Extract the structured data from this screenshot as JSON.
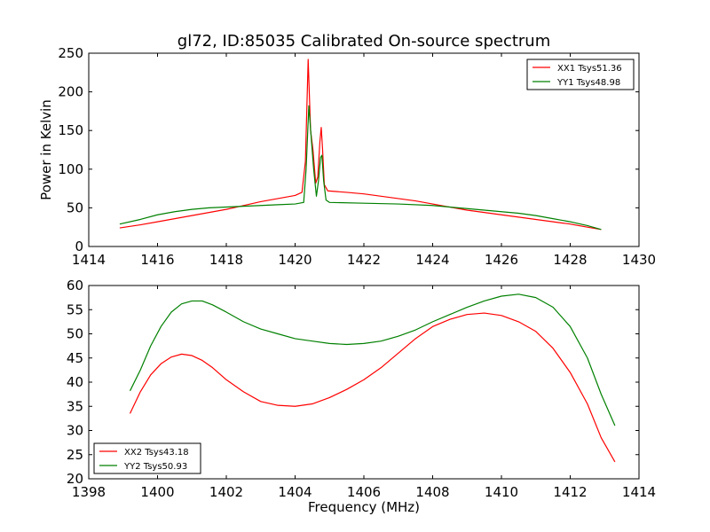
{
  "chart_data": [
    {
      "type": "line",
      "title": "gl72, ID:85035 Calibrated On-source spectrum",
      "xlabel": "",
      "ylabel": "Power in Kelvin",
      "xlim": [
        1414,
        1430
      ],
      "ylim": [
        0,
        250
      ],
      "xticks": [
        1414,
        1416,
        1418,
        1420,
        1422,
        1424,
        1426,
        1428,
        1430
      ],
      "yticks": [
        0,
        50,
        100,
        150,
        200,
        250
      ],
      "legend_position": "top-right",
      "series": [
        {
          "name": "XX1 Tsys51.36",
          "color": "#ff0000",
          "points": [
            [
              1414.9,
              24
            ],
            [
              1415.5,
              28
            ],
            [
              1416,
              32
            ],
            [
              1416.5,
              36
            ],
            [
              1417,
              40
            ],
            [
              1417.5,
              44
            ],
            [
              1418,
              48
            ],
            [
              1418.5,
              53
            ],
            [
              1419,
              58
            ],
            [
              1419.5,
              62
            ],
            [
              1420,
              66
            ],
            [
              1420.2,
              70
            ],
            [
              1420.3,
              110
            ],
            [
              1420.38,
              242
            ],
            [
              1420.45,
              150
            ],
            [
              1420.52,
              125
            ],
            [
              1420.6,
              82
            ],
            [
              1420.66,
              90
            ],
            [
              1420.72,
              135
            ],
            [
              1420.76,
              154
            ],
            [
              1420.8,
              125
            ],
            [
              1420.85,
              80
            ],
            [
              1420.95,
              72
            ],
            [
              1421.5,
              70
            ],
            [
              1422,
              68
            ],
            [
              1422.5,
              65
            ],
            [
              1423,
              62
            ],
            [
              1423.5,
              59
            ],
            [
              1424,
              55
            ],
            [
              1424.5,
              51
            ],
            [
              1425,
              47
            ],
            [
              1425.5,
              44
            ],
            [
              1426,
              41
            ],
            [
              1426.5,
              38
            ],
            [
              1427,
              35
            ],
            [
              1427.5,
              32
            ],
            [
              1428,
              29
            ],
            [
              1428.5,
              25
            ],
            [
              1428.9,
              22
            ]
          ]
        },
        {
          "name": "YY1 Tsys48.98",
          "color": "#008000",
          "points": [
            [
              1414.9,
              29
            ],
            [
              1415.5,
              35
            ],
            [
              1416,
              41
            ],
            [
              1416.5,
              45
            ],
            [
              1417,
              48
            ],
            [
              1417.5,
              50
            ],
            [
              1418,
              51
            ],
            [
              1418.5,
              52
            ],
            [
              1419,
              53
            ],
            [
              1419.5,
              54
            ],
            [
              1420,
              55
            ],
            [
              1420.25,
              57
            ],
            [
              1420.32,
              100
            ],
            [
              1420.4,
              182
            ],
            [
              1420.47,
              140
            ],
            [
              1420.54,
              100
            ],
            [
              1420.62,
              65
            ],
            [
              1420.68,
              85
            ],
            [
              1420.74,
              115
            ],
            [
              1420.78,
              118
            ],
            [
              1420.83,
              85
            ],
            [
              1420.9,
              60
            ],
            [
              1421,
              57
            ],
            [
              1422,
              56
            ],
            [
              1423,
              55
            ],
            [
              1424,
              53
            ],
            [
              1424.5,
              51
            ],
            [
              1425,
              49
            ],
            [
              1425.5,
              47
            ],
            [
              1426,
              45
            ],
            [
              1426.5,
              43
            ],
            [
              1427,
              40
            ],
            [
              1427.5,
              36
            ],
            [
              1428,
              32
            ],
            [
              1428.5,
              27
            ],
            [
              1428.9,
              22
            ]
          ]
        }
      ]
    },
    {
      "type": "line",
      "title": "",
      "xlabel": "Frequency (MHz)",
      "ylabel": "",
      "xlim": [
        1398,
        1414
      ],
      "ylim": [
        20,
        60
      ],
      "xticks": [
        1398,
        1400,
        1402,
        1404,
        1406,
        1408,
        1410,
        1412,
        1414
      ],
      "yticks": [
        20,
        25,
        30,
        35,
        40,
        45,
        50,
        55,
        60
      ],
      "legend_position": "bottom-left",
      "series": [
        {
          "name": "XX2 Tsys43.18",
          "color": "#ff0000",
          "points": [
            [
              1399.2,
              33.5
            ],
            [
              1399.5,
              38
            ],
            [
              1399.8,
              41.5
            ],
            [
              1400.1,
              43.8
            ],
            [
              1400.4,
              45.2
            ],
            [
              1400.7,
              45.8
            ],
            [
              1401,
              45.5
            ],
            [
              1401.3,
              44.5
            ],
            [
              1401.6,
              43
            ],
            [
              1402,
              40.5
            ],
            [
              1402.5,
              38
            ],
            [
              1403,
              36
            ],
            [
              1403.5,
              35.2
            ],
            [
              1404,
              35
            ],
            [
              1404.5,
              35.5
            ],
            [
              1405,
              36.8
            ],
            [
              1405.5,
              38.5
            ],
            [
              1406,
              40.5
            ],
            [
              1406.5,
              43
            ],
            [
              1407,
              46
            ],
            [
              1407.5,
              49
            ],
            [
              1408,
              51.5
            ],
            [
              1408.5,
              53
            ],
            [
              1409,
              54
            ],
            [
              1409.5,
              54.3
            ],
            [
              1410,
              53.8
            ],
            [
              1410.5,
              52.5
            ],
            [
              1411,
              50.5
            ],
            [
              1411.5,
              47
            ],
            [
              1412,
              42
            ],
            [
              1412.5,
              35.5
            ],
            [
              1412.9,
              28.5
            ],
            [
              1413.3,
              23.5
            ]
          ]
        },
        {
          "name": "YY2 Tsys50.93",
          "color": "#008000",
          "points": [
            [
              1399.2,
              38.2
            ],
            [
              1399.5,
              42.5
            ],
            [
              1399.8,
              47.5
            ],
            [
              1400.1,
              51.5
            ],
            [
              1400.4,
              54.5
            ],
            [
              1400.7,
              56.2
            ],
            [
              1401,
              56.8
            ],
            [
              1401.3,
              56.8
            ],
            [
              1401.6,
              56
            ],
            [
              1402,
              54.5
            ],
            [
              1402.5,
              52.5
            ],
            [
              1403,
              51
            ],
            [
              1403.5,
              50
            ],
            [
              1404,
              49
            ],
            [
              1404.5,
              48.5
            ],
            [
              1405,
              48
            ],
            [
              1405.5,
              47.8
            ],
            [
              1406,
              48
            ],
            [
              1406.5,
              48.5
            ],
            [
              1407,
              49.5
            ],
            [
              1407.5,
              50.8
            ],
            [
              1408,
              52.5
            ],
            [
              1408.5,
              54
            ],
            [
              1409,
              55.5
            ],
            [
              1409.5,
              56.8
            ],
            [
              1410,
              57.8
            ],
            [
              1410.5,
              58.2
            ],
            [
              1411,
              57.5
            ],
            [
              1411.5,
              55.5
            ],
            [
              1412,
              51.5
            ],
            [
              1412.5,
              45
            ],
            [
              1412.9,
              37.5
            ],
            [
              1413.3,
              31
            ]
          ]
        }
      ]
    }
  ]
}
